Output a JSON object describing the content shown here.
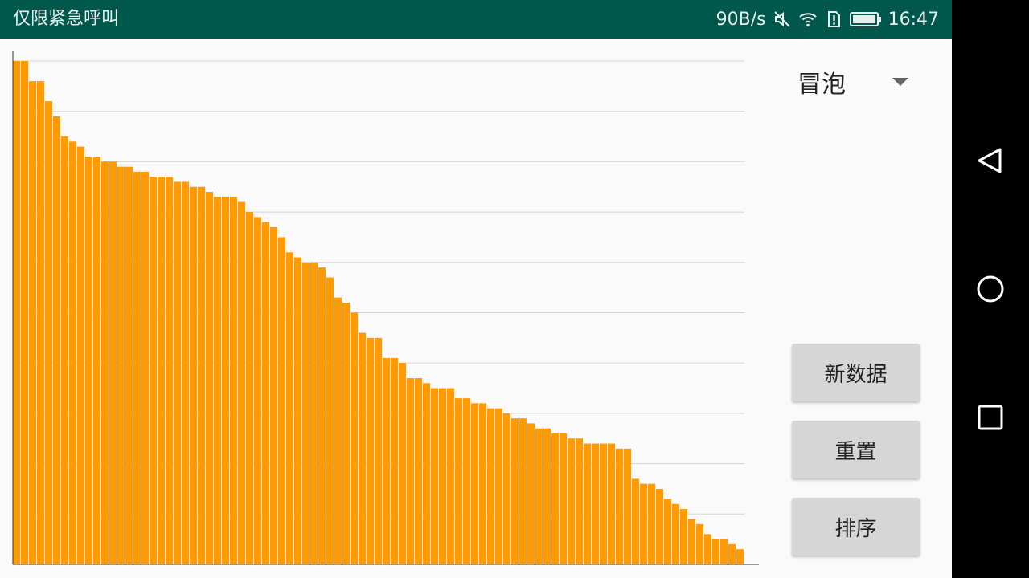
{
  "status_bar": {
    "left_text": "仅限紧急呼叫",
    "net_speed": "90B/s",
    "time": "16:47",
    "icons": [
      "mute-icon",
      "wifi-icon",
      "sim-alert-icon",
      "battery-icon"
    ]
  },
  "spinner": {
    "selected": "冒泡"
  },
  "buttons": {
    "new_data": "新数据",
    "reset": "重置",
    "sort": "排序"
  },
  "nav": {
    "icons": [
      "back-icon",
      "home-icon",
      "recents-icon"
    ]
  },
  "colors": {
    "bar": "#FF9A00",
    "status_bar": "#00574B",
    "grid": "#D4D4D4"
  },
  "chart_data": {
    "type": "bar",
    "ylim": [
      0,
      100
    ],
    "grid_lines": 10,
    "values": [
      100,
      100,
      96,
      96,
      92,
      89,
      85,
      84,
      83,
      81,
      81,
      80,
      80,
      79,
      79,
      78,
      78,
      77,
      77,
      77,
      76,
      76,
      75,
      75,
      74,
      73,
      73,
      73,
      72,
      70,
      69,
      68,
      67,
      65,
      62,
      61,
      60,
      60,
      59,
      57,
      53,
      52,
      50,
      46,
      45,
      45,
      41,
      41,
      40,
      37,
      37,
      36,
      35,
      35,
      35,
      33,
      33,
      32,
      32,
      31,
      31,
      30,
      29,
      29,
      28,
      27,
      27,
      26,
      26,
      25,
      25,
      24,
      24,
      24,
      24,
      23,
      23,
      17,
      16,
      16,
      15,
      13,
      12,
      11,
      9,
      8,
      6,
      5,
      5,
      4,
      3
    ]
  }
}
